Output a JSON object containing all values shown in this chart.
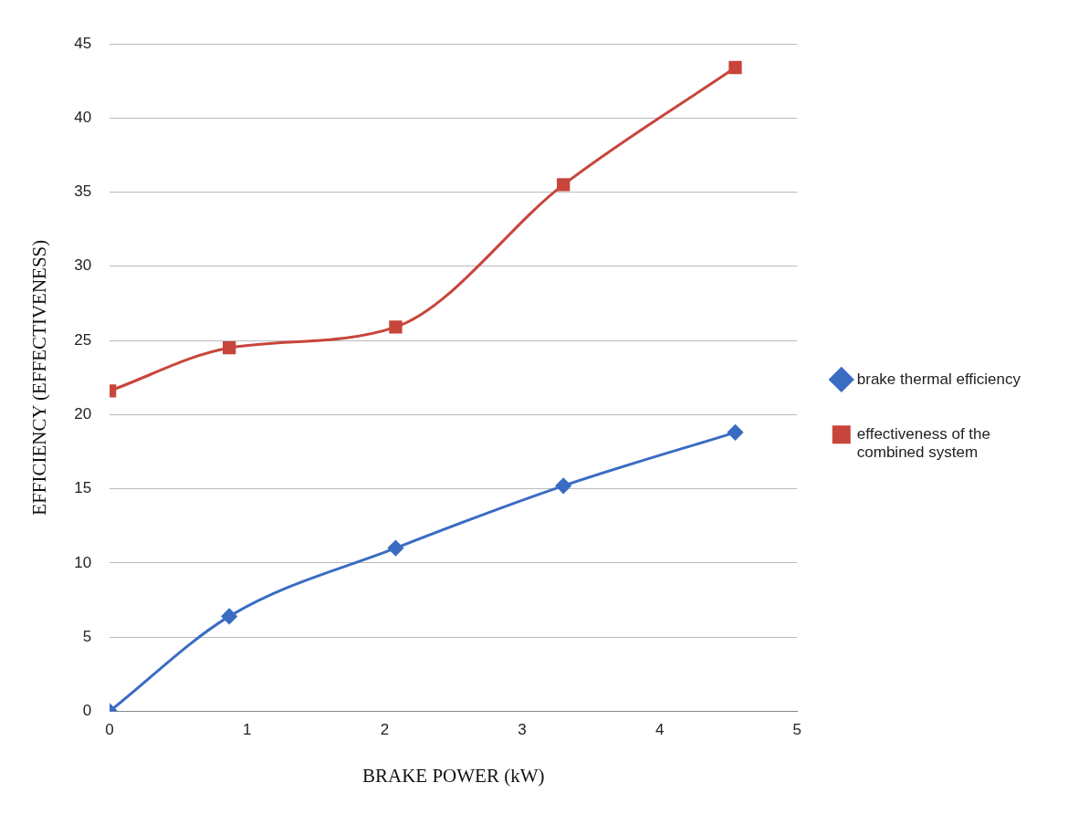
{
  "chart_data": {
    "type": "line",
    "xlabel": "BRAKE POWER (kW)",
    "ylabel": "EFFICIENCY (EFFECTIVENESS)",
    "xlim": [
      0,
      5
    ],
    "xticks": [
      0,
      1,
      2,
      3,
      4,
      5
    ],
    "ylim": [
      0,
      45
    ],
    "yticks": [
      0,
      5,
      10,
      15,
      20,
      25,
      30,
      35,
      40,
      45
    ],
    "grid": "y",
    "legend": "right",
    "x": [
      0,
      0.87,
      2.08,
      3.3,
      4.55
    ],
    "series": [
      {
        "name": "brake thermal efficiency",
        "color": "#3a6cc2",
        "marker": "diamond",
        "values": [
          0,
          6.4,
          11,
          15.2,
          18.8
        ]
      },
      {
        "name": "effectiveness of the combined system",
        "color": "#c8453b",
        "marker": "square",
        "values": [
          21.6,
          24.5,
          25.9,
          35.5,
          43.4
        ]
      }
    ]
  }
}
